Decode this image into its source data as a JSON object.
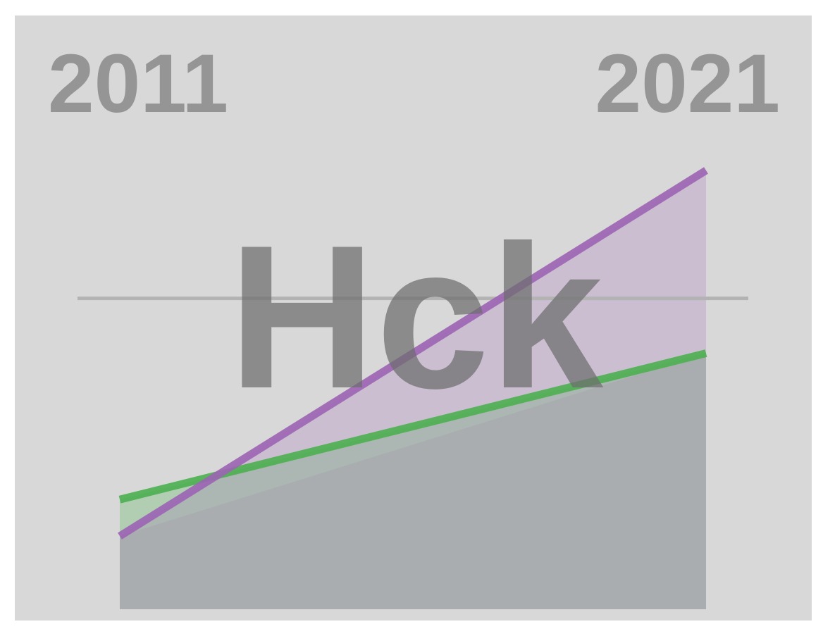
{
  "chart_data": {
    "type": "area",
    "x": [
      "2011",
      "2021"
    ],
    "start_label": "2011",
    "end_label": "2021",
    "watermark": "Hck",
    "series": [
      {
        "values": [
          8,
          24
        ],
        "color": "#4caf50"
      },
      {
        "values": [
          4,
          44
        ],
        "color": "#9c64b4"
      }
    ],
    "reference_line": 30,
    "ylim": [
      -4,
      48
    ],
    "grid": false,
    "legend": "none"
  }
}
